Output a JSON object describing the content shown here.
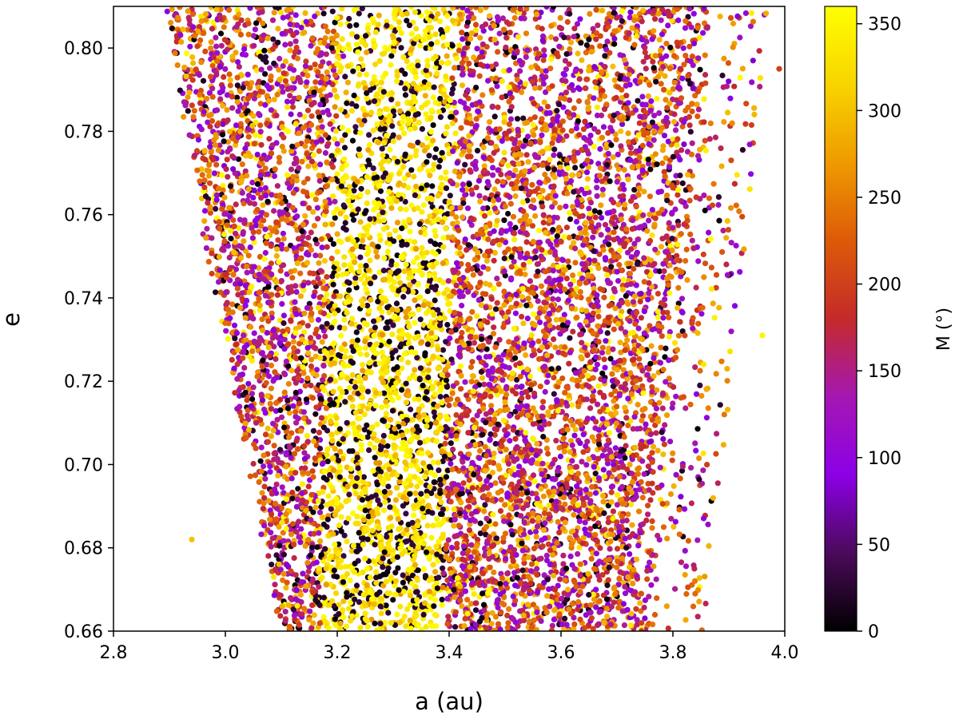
{
  "chart_data": {
    "type": "scatter",
    "title": "",
    "xlabel": "a (au)",
    "ylabel": "e",
    "xlim": [
      2.8,
      4.0
    ],
    "ylim": [
      0.66,
      0.81
    ],
    "xticks": [
      "2.8",
      "3.0",
      "3.2",
      "3.4",
      "3.6",
      "3.8",
      "4.0"
    ],
    "yticks": [
      "0.66",
      "0.68",
      "0.70",
      "0.72",
      "0.74",
      "0.76",
      "0.78",
      "0.80"
    ],
    "grid": false,
    "colorbar": {
      "label": "M (°)",
      "range": [
        0,
        360
      ],
      "ticks": [
        "0",
        "50",
        "100",
        "150",
        "200",
        "250",
        "300",
        "350"
      ],
      "colormap": "gnuplot",
      "stops": [
        "#000000",
        "#4b0a5a",
        "#8c00e6",
        "#a517b2",
        "#c42a2a",
        "#dd5a08",
        "#ef9a00",
        "#f8d400",
        "#ffff00"
      ]
    },
    "series": [
      {
        "description": "Dense cloud of test particles; left band a≈2.9–3.2 and right band a≈3.4–3.8 mixed purple/red/orange M, central band a≈3.2–3.4 dominated by yellow (M≈330–360) and black (M≈0–30)",
        "regions": [
          {
            "a_range_bottom": [
              3.09,
              3.17
            ],
            "a_range_top": [
              2.88,
              3.2
            ],
            "dominant_M": "mixed 80–300"
          },
          {
            "a_range_bottom": [
              3.17,
              3.38
            ],
            "a_range_top": [
              3.2,
              3.42
            ],
            "dominant_M": "330–360 and 0–30"
          },
          {
            "a_range_bottom": [
              3.38,
              3.78
            ],
            "a_range_top": [
              3.42,
              3.95
            ],
            "dominant_M": "mixed 80–300"
          }
        ]
      }
    ],
    "outliers": [
      {
        "a": 2.94,
        "e": 0.682,
        "M": 300
      },
      {
        "a": 3.96,
        "e": 0.731,
        "M": 350
      },
      {
        "a": 3.99,
        "e": 0.795,
        "M": 200
      }
    ]
  }
}
